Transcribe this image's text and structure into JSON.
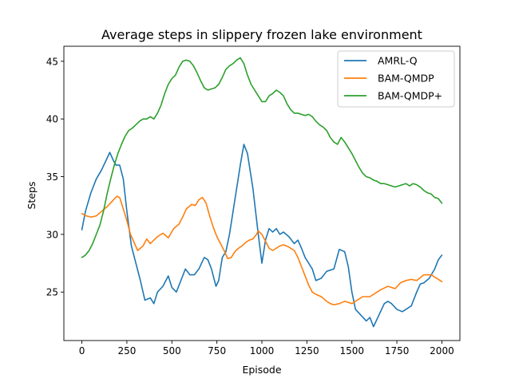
{
  "chart_data": {
    "type": "line",
    "title": "Average steps in  slippery frozen lake environment",
    "xlabel": "Episode",
    "ylabel": "Steps",
    "xlim": [
      -100,
      2100
    ],
    "ylim": [
      20.8,
      46.3
    ],
    "xticks": [
      0,
      250,
      500,
      750,
      1000,
      1250,
      1500,
      1750,
      2000
    ],
    "yticks": [
      25,
      30,
      35,
      40,
      45
    ],
    "grid": false,
    "legend_position": "top-right",
    "series": [
      {
        "name": "AMRL-Q",
        "color": "#1f77b4",
        "points": [
          [
            0,
            30.4
          ],
          [
            20,
            32.0
          ],
          [
            50,
            33.6
          ],
          [
            80,
            34.8
          ],
          [
            110,
            35.6
          ],
          [
            140,
            36.6
          ],
          [
            155,
            37.1
          ],
          [
            175,
            36.4
          ],
          [
            190,
            36.0
          ],
          [
            210,
            36.0
          ],
          [
            230,
            34.8
          ],
          [
            250,
            32.0
          ],
          [
            275,
            29.0
          ],
          [
            300,
            27.5
          ],
          [
            325,
            26.0
          ],
          [
            350,
            24.3
          ],
          [
            380,
            24.5
          ],
          [
            400,
            24.0
          ],
          [
            420,
            25.0
          ],
          [
            450,
            25.5
          ],
          [
            480,
            26.4
          ],
          [
            500,
            25.4
          ],
          [
            525,
            25.0
          ],
          [
            550,
            26.0
          ],
          [
            575,
            27.0
          ],
          [
            600,
            26.5
          ],
          [
            625,
            26.5
          ],
          [
            650,
            27.0
          ],
          [
            680,
            28.0
          ],
          [
            700,
            27.8
          ],
          [
            720,
            27.0
          ],
          [
            745,
            25.5
          ],
          [
            760,
            26.0
          ],
          [
            780,
            28.0
          ],
          [
            800,
            28.5
          ],
          [
            820,
            30.0
          ],
          [
            850,
            33.0
          ],
          [
            880,
            36.0
          ],
          [
            900,
            37.8
          ],
          [
            920,
            37.0
          ],
          [
            950,
            34.0
          ],
          [
            980,
            30.0
          ],
          [
            1000,
            27.5
          ],
          [
            1020,
            29.5
          ],
          [
            1040,
            30.5
          ],
          [
            1060,
            30.2
          ],
          [
            1080,
            30.5
          ],
          [
            1100,
            30.0
          ],
          [
            1120,
            30.2
          ],
          [
            1150,
            29.8
          ],
          [
            1180,
            29.2
          ],
          [
            1200,
            29.5
          ],
          [
            1220,
            28.8
          ],
          [
            1240,
            28.0
          ],
          [
            1260,
            27.5
          ],
          [
            1280,
            27.0
          ],
          [
            1300,
            26.0
          ],
          [
            1330,
            26.2
          ],
          [
            1360,
            26.8
          ],
          [
            1400,
            27.0
          ],
          [
            1430,
            28.7
          ],
          [
            1460,
            28.5
          ],
          [
            1480,
            27.2
          ],
          [
            1500,
            25.0
          ],
          [
            1520,
            23.5
          ],
          [
            1550,
            23.0
          ],
          [
            1580,
            22.5
          ],
          [
            1600,
            22.8
          ],
          [
            1620,
            22.0
          ],
          [
            1650,
            23.0
          ],
          [
            1680,
            24.0
          ],
          [
            1700,
            24.2
          ],
          [
            1720,
            24.0
          ],
          [
            1750,
            23.5
          ],
          [
            1780,
            23.3
          ],
          [
            1800,
            23.5
          ],
          [
            1830,
            23.8
          ],
          [
            1860,
            25.0
          ],
          [
            1880,
            25.7
          ],
          [
            1900,
            25.8
          ],
          [
            1930,
            26.2
          ],
          [
            1960,
            27.0
          ],
          [
            1980,
            27.8
          ],
          [
            2000,
            28.2
          ]
        ]
      },
      {
        "name": "BAM-QMDP",
        "color": "#ff7f0e",
        "points": [
          [
            0,
            31.8
          ],
          [
            25,
            31.6
          ],
          [
            50,
            31.5
          ],
          [
            80,
            31.6
          ],
          [
            110,
            32.0
          ],
          [
            140,
            32.4
          ],
          [
            170,
            32.9
          ],
          [
            195,
            33.3
          ],
          [
            210,
            33.2
          ],
          [
            230,
            32.2
          ],
          [
            250,
            31.2
          ],
          [
            270,
            30.0
          ],
          [
            290,
            29.3
          ],
          [
            310,
            28.6
          ],
          [
            340,
            29.0
          ],
          [
            360,
            29.6
          ],
          [
            380,
            29.2
          ],
          [
            400,
            29.5
          ],
          [
            420,
            29.8
          ],
          [
            450,
            30.1
          ],
          [
            480,
            29.7
          ],
          [
            510,
            30.5
          ],
          [
            540,
            30.9
          ],
          [
            560,
            31.5
          ],
          [
            580,
            32.2
          ],
          [
            610,
            32.6
          ],
          [
            630,
            32.5
          ],
          [
            650,
            33.0
          ],
          [
            670,
            33.2
          ],
          [
            690,
            32.7
          ],
          [
            710,
            31.6
          ],
          [
            730,
            30.6
          ],
          [
            750,
            29.8
          ],
          [
            770,
            29.2
          ],
          [
            790,
            28.6
          ],
          [
            810,
            27.9
          ],
          [
            830,
            28.0
          ],
          [
            850,
            28.5
          ],
          [
            870,
            28.8
          ],
          [
            890,
            29.0
          ],
          [
            910,
            29.3
          ],
          [
            930,
            29.5
          ],
          [
            950,
            29.6
          ],
          [
            970,
            30.0
          ],
          [
            980,
            30.3
          ],
          [
            1000,
            30.0
          ],
          [
            1020,
            29.4
          ],
          [
            1040,
            28.8
          ],
          [
            1060,
            28.6
          ],
          [
            1080,
            28.8
          ],
          [
            1100,
            29.0
          ],
          [
            1120,
            29.1
          ],
          [
            1150,
            28.9
          ],
          [
            1180,
            28.6
          ],
          [
            1200,
            28.0
          ],
          [
            1220,
            27.2
          ],
          [
            1240,
            26.4
          ],
          [
            1260,
            25.6
          ],
          [
            1280,
            25.0
          ],
          [
            1300,
            24.8
          ],
          [
            1330,
            24.6
          ],
          [
            1360,
            24.2
          ],
          [
            1380,
            24.0
          ],
          [
            1400,
            23.9
          ],
          [
            1430,
            24.0
          ],
          [
            1460,
            24.2
          ],
          [
            1500,
            24.0
          ],
          [
            1530,
            24.3
          ],
          [
            1560,
            24.6
          ],
          [
            1600,
            24.6
          ],
          [
            1630,
            24.9
          ],
          [
            1660,
            25.2
          ],
          [
            1700,
            25.5
          ],
          [
            1740,
            25.3
          ],
          [
            1770,
            25.8
          ],
          [
            1800,
            26.0
          ],
          [
            1830,
            26.1
          ],
          [
            1860,
            26.0
          ],
          [
            1900,
            26.5
          ],
          [
            1940,
            26.5
          ],
          [
            1970,
            26.2
          ],
          [
            2000,
            25.9
          ]
        ]
      },
      {
        "name": "BAM-QMDP+",
        "color": "#2ca02c",
        "points": [
          [
            0,
            28.0
          ],
          [
            20,
            28.2
          ],
          [
            40,
            28.6
          ],
          [
            60,
            29.2
          ],
          [
            80,
            30.0
          ],
          [
            100,
            30.8
          ],
          [
            120,
            32.0
          ],
          [
            140,
            33.5
          ],
          [
            160,
            34.8
          ],
          [
            180,
            36.0
          ],
          [
            200,
            37.0
          ],
          [
            220,
            37.8
          ],
          [
            240,
            38.5
          ],
          [
            260,
            39.0
          ],
          [
            280,
            39.2
          ],
          [
            300,
            39.5
          ],
          [
            320,
            39.8
          ],
          [
            340,
            40.0
          ],
          [
            360,
            40.0
          ],
          [
            380,
            40.2
          ],
          [
            400,
            40.0
          ],
          [
            420,
            40.5
          ],
          [
            440,
            41.2
          ],
          [
            460,
            42.2
          ],
          [
            480,
            43.0
          ],
          [
            500,
            43.5
          ],
          [
            520,
            43.8
          ],
          [
            540,
            44.5
          ],
          [
            560,
            45.0
          ],
          [
            580,
            45.1
          ],
          [
            600,
            45.0
          ],
          [
            620,
            44.6
          ],
          [
            640,
            44.0
          ],
          [
            660,
            43.3
          ],
          [
            680,
            42.7
          ],
          [
            700,
            42.5
          ],
          [
            720,
            42.6
          ],
          [
            740,
            42.7
          ],
          [
            760,
            43.0
          ],
          [
            780,
            43.6
          ],
          [
            800,
            44.3
          ],
          [
            820,
            44.6
          ],
          [
            840,
            44.8
          ],
          [
            860,
            45.1
          ],
          [
            880,
            45.3
          ],
          [
            900,
            44.8
          ],
          [
            920,
            43.8
          ],
          [
            940,
            43.0
          ],
          [
            960,
            42.5
          ],
          [
            980,
            42.0
          ],
          [
            1000,
            41.5
          ],
          [
            1020,
            41.5
          ],
          [
            1040,
            42.0
          ],
          [
            1060,
            42.2
          ],
          [
            1080,
            42.5
          ],
          [
            1100,
            42.3
          ],
          [
            1120,
            42.0
          ],
          [
            1140,
            41.3
          ],
          [
            1160,
            40.8
          ],
          [
            1180,
            40.5
          ],
          [
            1200,
            40.5
          ],
          [
            1220,
            40.4
          ],
          [
            1240,
            40.3
          ],
          [
            1260,
            40.4
          ],
          [
            1280,
            40.2
          ],
          [
            1300,
            39.8
          ],
          [
            1320,
            39.5
          ],
          [
            1340,
            39.3
          ],
          [
            1360,
            39.0
          ],
          [
            1380,
            38.4
          ],
          [
            1400,
            38.0
          ],
          [
            1420,
            37.8
          ],
          [
            1440,
            38.4
          ],
          [
            1460,
            38.0
          ],
          [
            1480,
            37.5
          ],
          [
            1500,
            37.0
          ],
          [
            1520,
            36.4
          ],
          [
            1540,
            35.8
          ],
          [
            1560,
            35.3
          ],
          [
            1580,
            35.0
          ],
          [
            1600,
            34.9
          ],
          [
            1620,
            34.7
          ],
          [
            1640,
            34.6
          ],
          [
            1660,
            34.4
          ],
          [
            1680,
            34.4
          ],
          [
            1700,
            34.3
          ],
          [
            1720,
            34.2
          ],
          [
            1740,
            34.1
          ],
          [
            1760,
            34.2
          ],
          [
            1780,
            34.3
          ],
          [
            1800,
            34.4
          ],
          [
            1820,
            34.2
          ],
          [
            1840,
            34.4
          ],
          [
            1860,
            34.3
          ],
          [
            1880,
            34.1
          ],
          [
            1900,
            33.8
          ],
          [
            1920,
            33.6
          ],
          [
            1940,
            33.5
          ],
          [
            1960,
            33.2
          ],
          [
            1980,
            33.1
          ],
          [
            2000,
            32.7
          ]
        ]
      }
    ]
  }
}
